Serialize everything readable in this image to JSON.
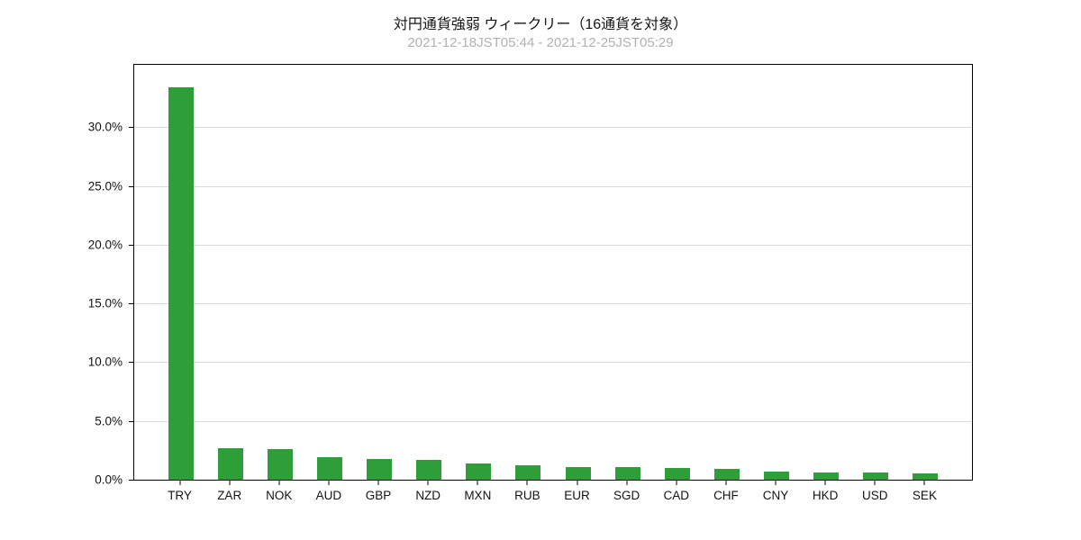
{
  "chart_data": {
    "type": "bar",
    "title": "対円通貨強弱 ウィークリー（16通貨を対象）",
    "subtitle": "2021-12-18JST05:44 - 2021-12-25JST05:29",
    "categories": [
      "TRY",
      "ZAR",
      "NOK",
      "AUD",
      "GBP",
      "NZD",
      "MXN",
      "RUB",
      "EUR",
      "SGD",
      "CAD",
      "CHF",
      "CNY",
      "HKD",
      "USD",
      "SEK"
    ],
    "values": [
      33.4,
      2.7,
      2.6,
      1.9,
      1.8,
      1.7,
      1.4,
      1.2,
      1.1,
      1.1,
      1.0,
      0.9,
      0.7,
      0.6,
      0.6,
      0.5
    ],
    "unit": "%",
    "xlabel": "",
    "ylabel": "",
    "ylim": [
      0,
      35.3
    ],
    "yticks": [
      0,
      5,
      10,
      15,
      20,
      25,
      30
    ],
    "ytick_labels": [
      "0.0%",
      "5.0%",
      "10.0%",
      "15.0%",
      "20.0%",
      "25.0%",
      "30.0%"
    ],
    "grid": true,
    "legend": "none",
    "bar_color": "#2e9e38",
    "title_color": "#141414",
    "subtitle_color": "#b2b2b2",
    "grid_color": "#d9d9d9"
  }
}
